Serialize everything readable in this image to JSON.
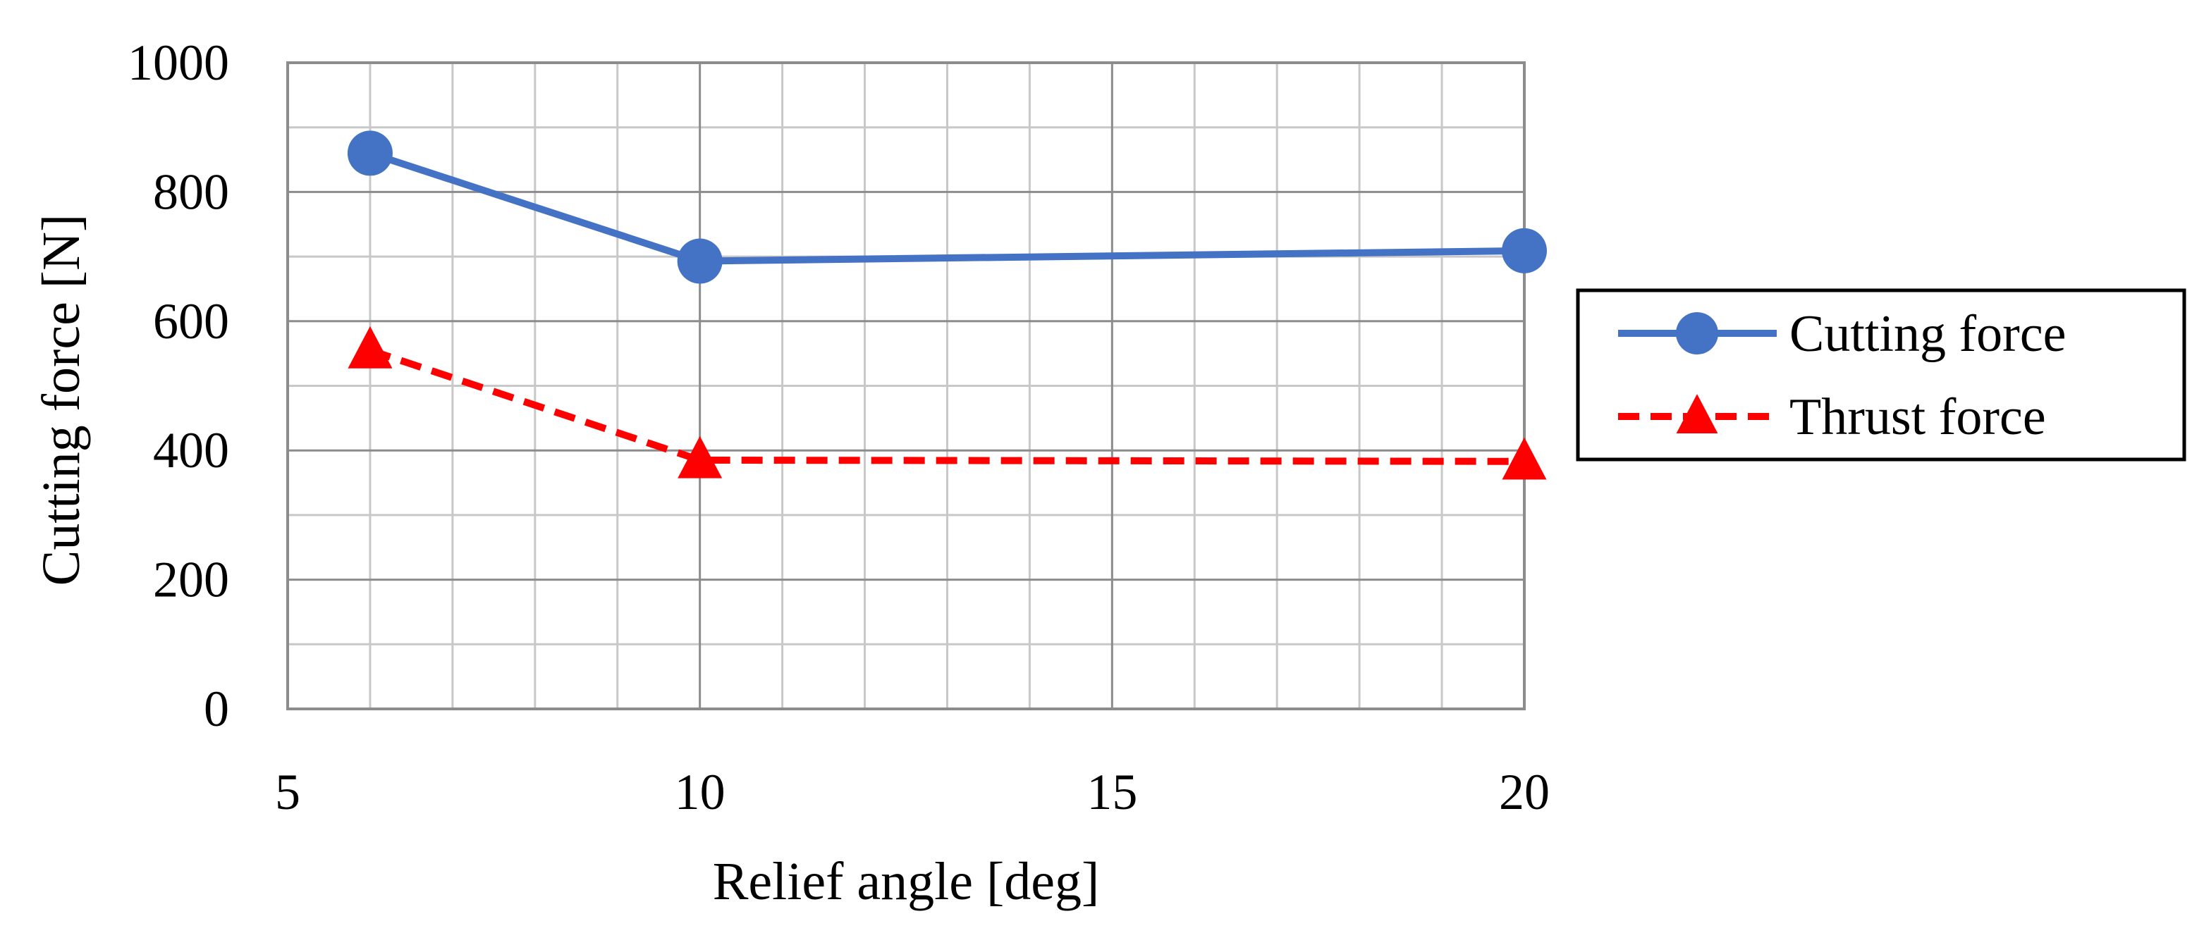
{
  "chart_data": {
    "type": "line",
    "xlabel": "Relief angle [deg]",
    "ylabel": "Cutting force [N]",
    "ylim": [
      0,
      1000
    ],
    "x_tick_labels": [
      "5",
      "10",
      "15",
      "20"
    ],
    "y_tick_labels": [
      "0",
      "200",
      "400",
      "600",
      "800",
      "1000"
    ],
    "x": [
      "6",
      "10",
      "20"
    ],
    "grid": true,
    "legend_position": "right",
    "series": [
      {
        "name": "Cutting force",
        "values": [
          860,
          693,
          709
        ],
        "color": "#4472c4",
        "marker": "circle",
        "line_style": "solid"
      },
      {
        "name": "Thrust force",
        "values": [
          555,
          385,
          383
        ],
        "color": "#ff0000",
        "marker": "triangle",
        "line_style": "dashed"
      }
    ]
  }
}
